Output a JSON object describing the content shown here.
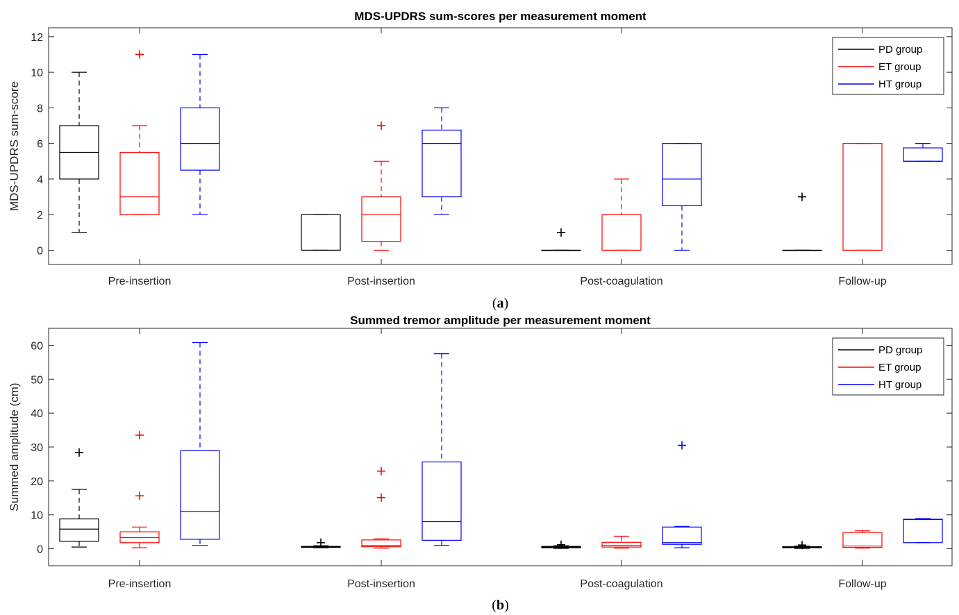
{
  "chart_data": [
    {
      "type": "box",
      "title": "MDS-UPDRS sum-scores per measurement moment",
      "caption": "(a)",
      "caption_letter": "a",
      "ylabel": "MDS-UPDRS sum-score",
      "ylim": [
        -0.8,
        12.5
      ],
      "yticks": [
        0,
        2,
        4,
        6,
        8,
        10,
        12
      ],
      "categories": [
        "Pre-insertion",
        "Post-insertion",
        "Post-coagulation",
        "Follow-up"
      ],
      "legend": {
        "position": "top-right",
        "entries": [
          "PD group",
          "ET group",
          "HT group"
        ]
      },
      "series": [
        {
          "name": "PD group",
          "color": "#000000",
          "boxes": [
            {
              "min": 1,
              "q1": 4,
              "median": 5.5,
              "q3": 7,
              "max": 10,
              "outliers": []
            },
            {
              "min": 0,
              "q1": 0,
              "median": 0,
              "q3": 2,
              "max": 2,
              "outliers": []
            },
            {
              "min": 0,
              "q1": 0,
              "median": 0,
              "q3": 0,
              "max": 0,
              "outliers": [
                1
              ]
            },
            {
              "min": 0,
              "q1": 0,
              "median": 0,
              "q3": 0,
              "max": 0,
              "outliers": [
                3
              ]
            }
          ]
        },
        {
          "name": "ET group",
          "color": "#ff0000",
          "boxes": [
            {
              "min": 2,
              "q1": 2,
              "median": 3,
              "q3": 5.5,
              "max": 7,
              "outliers": [
                11
              ]
            },
            {
              "min": 0,
              "q1": 0.5,
              "median": 2,
              "q3": 3,
              "max": 5,
              "outliers": [
                7
              ]
            },
            {
              "min": 0,
              "q1": 0,
              "median": 0,
              "q3": 2,
              "max": 4,
              "outliers": []
            },
            {
              "min": 0,
              "q1": 0,
              "median": 0,
              "q3": 6,
              "max": 6,
              "outliers": []
            }
          ]
        },
        {
          "name": "HT group",
          "color": "#0000ff",
          "boxes": [
            {
              "min": 2,
              "q1": 4.5,
              "median": 6,
              "q3": 8,
              "max": 11,
              "outliers": []
            },
            {
              "min": 2,
              "q1": 3,
              "median": 6,
              "q3": 6.75,
              "max": 8,
              "outliers": []
            },
            {
              "min": 0,
              "q1": 2.5,
              "median": 4,
              "q3": 6,
              "max": 6,
              "outliers": []
            },
            {
              "min": 5,
              "q1": 5,
              "median": 5,
              "q3": 5.75,
              "max": 6,
              "outliers": []
            }
          ]
        }
      ]
    },
    {
      "type": "box",
      "title": "Summed tremor amplitude per measurement moment",
      "caption": "(b)",
      "caption_letter": "b",
      "ylabel": "Summed amplitude (cm)",
      "ylim": [
        -5,
        65
      ],
      "yticks": [
        0,
        10,
        20,
        30,
        40,
        50,
        60
      ],
      "categories": [
        "Pre-insertion",
        "Post-insertion",
        "Post-coagulation",
        "Follow-up"
      ],
      "legend": {
        "position": "top-right",
        "entries": [
          "PD group",
          "ET group",
          "HT group"
        ]
      },
      "series": [
        {
          "name": "PD group",
          "color": "#000000",
          "boxes": [
            {
              "min": 0.5,
              "q1": 2.2,
              "median": 5.8,
              "q3": 8.8,
              "max": 17.5,
              "outliers": [
                28.4
              ]
            },
            {
              "min": 0.3,
              "q1": 0.4,
              "median": 0.5,
              "q3": 0.7,
              "max": 0.9,
              "outliers": [
                1.8
              ]
            },
            {
              "min": 0.1,
              "q1": 0.3,
              "median": 0.5,
              "q3": 0.7,
              "max": 0.9,
              "outliers": [
                1.2
              ]
            },
            {
              "min": 0.1,
              "q1": 0.3,
              "median": 0.4,
              "q3": 0.6,
              "max": 0.8,
              "outliers": [
                1.1
              ]
            }
          ]
        },
        {
          "name": "ET group",
          "color": "#ff0000",
          "boxes": [
            {
              "min": 0.3,
              "q1": 1.8,
              "median": 3.3,
              "q3": 5.0,
              "max": 6.4,
              "outliers": [
                15.6,
                33.5
              ]
            },
            {
              "min": 0.2,
              "q1": 0.6,
              "median": 1.0,
              "q3": 2.6,
              "max": 2.9,
              "outliers": [
                15.1,
                22.9
              ]
            },
            {
              "min": 0.2,
              "q1": 0.5,
              "median": 1.0,
              "q3": 1.9,
              "max": 3.7,
              "outliers": []
            },
            {
              "min": 0.2,
              "q1": 0.4,
              "median": 0.8,
              "q3": 4.8,
              "max": 5.3,
              "outliers": []
            }
          ]
        },
        {
          "name": "HT group",
          "color": "#0000ff",
          "boxes": [
            {
              "min": 1.0,
              "q1": 2.8,
              "median": 11.0,
              "q3": 28.9,
              "max": 60.8,
              "outliers": []
            },
            {
              "min": 1.0,
              "q1": 2.5,
              "median": 8.0,
              "q3": 25.6,
              "max": 57.5,
              "outliers": []
            },
            {
              "min": 0.3,
              "q1": 1.3,
              "median": 1.8,
              "q3": 6.4,
              "max": 6.6,
              "outliers": [
                30.5
              ]
            },
            {
              "min": 1.8,
              "q1": 1.8,
              "median": 8.6,
              "q3": 8.7,
              "max": 8.9,
              "outliers": []
            }
          ]
        }
      ]
    }
  ]
}
